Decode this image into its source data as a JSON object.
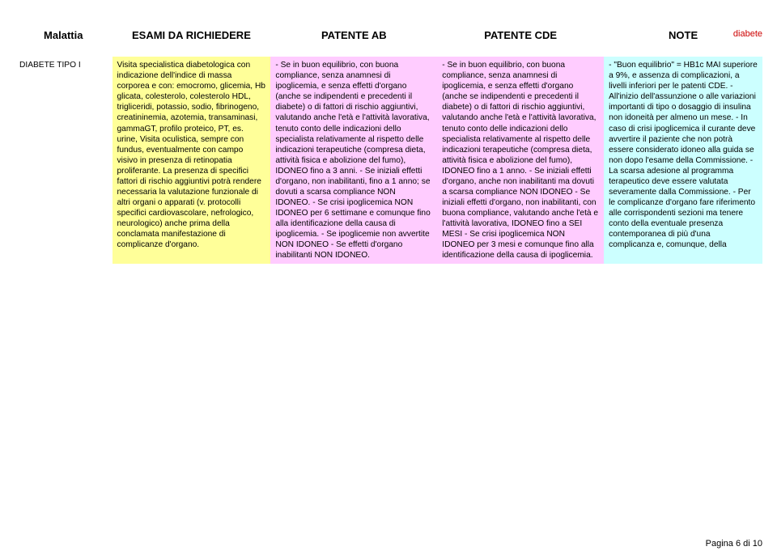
{
  "topRight": "diabete",
  "footer": "Pagina 6 di 10",
  "headers": {
    "c0": "Malattia",
    "c1": "ESAMI DA RICHIEDERE",
    "c2": "PATENTE AB",
    "c3": "PATENTE CDE",
    "c4": "NOTE"
  },
  "row": {
    "malattia": "DIABETE TIPO I",
    "esami": "Visita specialistica diabetologica con indicazione dell'indice di massa\ncorporea e con: emocromo, glicemia, Hb glicata, colesterolo, colesterolo HDL, trigliceridi, potassio, sodio, fibrinogeno, creatininemia, azotemia, transaminasi,\ngammaGT, profilo proteico, PT, es. urine,\nVisita oculistica, sempre con fundus, eventualmente con campo visivo in\npresenza di retinopatia proliferante.\nLa presenza di specifici fattori di rischio aggiuntivi potrà rendere necessaria la valutazione funzionale di altri organi o apparati (v. protocolli specifici cardiovascolare, nefrologico, neurologico) anche prima della conclamata manifestazione di complicanze d'organo.",
    "ab": "- Se in buon equilibrio, con buona compliance, senza anamnesi di ipoglicemia, e senza effetti d'organo (anche se indipendenti e precedenti il diabete) o di fattori di rischio aggiuntivi, valutando anche l'età e l'attività lavorativa, tenuto conto delle indicazioni dello specialista relativamente al rispetto delle indicazioni terapeutiche (compresa dieta, attività fisica e abolizione del fumo), IDONEO fino a 3 anni.\n- Se iniziali effetti d'organo, non inabilitanti, fino a 1 anno; se dovuti a scarsa compliance NON IDONEO.\n- Se crisi ipoglicemica NON IDONEO per 6 settimane e comunque fino alla identificazione della causa di ipoglicemia.\n- Se ipoglicemie non avvertite NON IDONEO\n- Se effetti d'organo inabilitanti NON IDONEO.",
    "cde": "- Se in buon equilibrio, con buona compliance, senza anamnesi di ipoglicemia, e senza effetti d'organo (anche se indipendenti e precedenti il diabete) o di fattori di rischio aggiuntivi, valutando anche l'età e l'attività lavorativa, tenuto conto delle indicazioni dello specialista relativamente al rispetto delle indicazioni terapeutiche (compresa dieta, attività fisica e abolizione del fumo), IDONEO fino a 1 anno.\n- Se iniziali effetti d'organo, anche non inabilitanti ma dovuti a scarsa compliance NON IDONEO\n- Se iniziali effetti d'organo, non inabilitanti, con buona compliance, valutando anche l'età e l'attività lavorativa, IDONEO fino a SEI MESI\n- Se crisi ipoglicemica NON IDONEO per 3 mesi e comunque fino alla identificazione della causa di ipoglicemia.",
    "note": "- \"Buon equilibrio\" = HB1c MAI superiore a 9%, e assenza di complicazioni, a livelli inferiori per le patenti CDE.\n- All'inizio dell'assunzione o alle variazioni importanti di tipo o dosaggio di insulina non idoneità per almeno un mese.\n- In caso di crisi ipoglicemica il curante deve avvertire il paziente che non potrà essere considerato idoneo alla guida se non dopo l'esame della Commissione.\n- La scarsa adesione al programma terapeutico deve essere valutata severamente dalla Commissione.\n- Per le complicanze d'organo fare riferimento alle corrispondenti sezioni ma tenere conto della eventuale presenza contemporanea di più d'una complicanza e, comunque, della"
  }
}
